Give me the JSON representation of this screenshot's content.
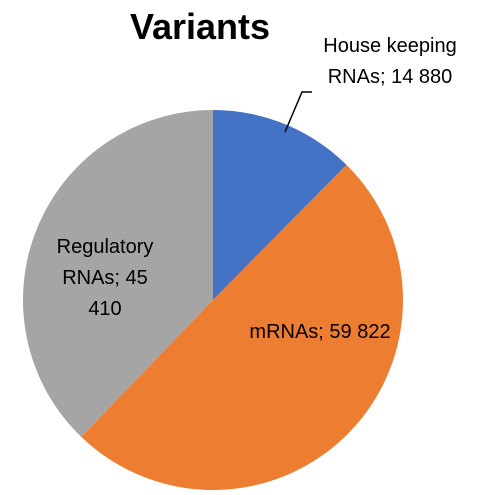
{
  "chart_data": {
    "type": "pie",
    "title": "Variants",
    "values": [
      14880,
      59822,
      45410
    ],
    "value_labels": [
      "House keeping RNAs; 14 880",
      "mRNAs; 59 822",
      "Regulatory RNAs; 45 410"
    ],
    "colors": [
      "#4472c4",
      "#ed7d31",
      "#a5a5a5"
    ]
  }
}
